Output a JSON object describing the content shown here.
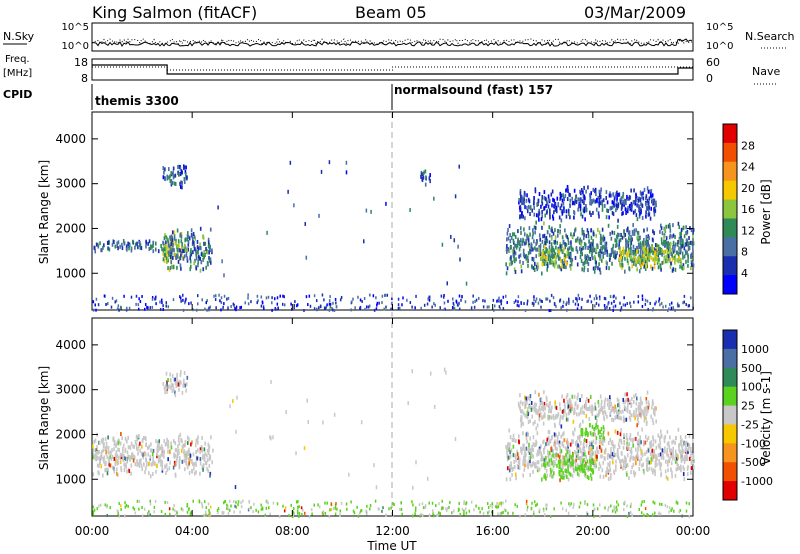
{
  "header": {
    "station": "King Salmon (fitACF)",
    "beam": "Beam 05",
    "date": "03/Mar/2009"
  },
  "labels": {
    "nsky": "N.Sky",
    "nsearch": "N.Search",
    "freq_line1": "Freq.",
    "freq_line2": "[MHz]",
    "nave": "Nave",
    "cpid": "CPID",
    "cpid_mode1": "themis 3300",
    "cpid_mode2": "normalsound (fast) 157"
  },
  "noise_ticks": {
    "top": "10^5",
    "bottom": "10^0"
  },
  "freq_ticks": {
    "left": [
      "18",
      "8"
    ],
    "right": [
      "60",
      "0"
    ]
  },
  "colorbar_power": {
    "label": "Power [dB]",
    "ticks": [
      "28",
      "24",
      "20",
      "16",
      "12",
      "8",
      "4"
    ],
    "colors": [
      "#e00000",
      "#f05000",
      "#f7941d",
      "#f5c800",
      "#8cc63f",
      "#2e8b57",
      "#4a6fa5",
      "#1a2fb0",
      "#0000ff"
    ]
  },
  "colorbar_velocity": {
    "label": "Velocity [m s-1]",
    "ticks": [
      "1000",
      "500",
      "100",
      "25",
      "-25",
      "-100",
      "-500",
      "-1000"
    ],
    "colors": [
      "#1a2fb0",
      "#4a6fa5",
      "#2e8b57",
      "#5ad21e",
      "#c8c8c8",
      "#f5c800",
      "#f7941d",
      "#f05000",
      "#e00000"
    ]
  },
  "chart_data": {
    "type": "heatmap",
    "xlabel": "Time UT",
    "ylabel": "Slant Range [km]",
    "x_ticks": [
      "00:00",
      "04:00",
      "08:00",
      "12:00",
      "16:00",
      "20:00",
      "00:00"
    ],
    "x_range_hours": [
      0,
      24
    ],
    "y_ticks": [
      "1000",
      "2000",
      "3000",
      "4000"
    ],
    "y_range_km": [
      180,
      4600
    ],
    "cpid_change_hour": 12,
    "freq_step_hour": 3,
    "power_clusters": [
      {
        "x": [
          0.0,
          3.0
        ],
        "y": [
          1500,
          1800
        ],
        "level": 8
      },
      {
        "x": [
          2.8,
          3.6
        ],
        "y": [
          1050,
          2000
        ],
        "level": 18
      },
      {
        "x": [
          3.0,
          4.8
        ],
        "y": [
          1050,
          2100
        ],
        "level": 10
      },
      {
        "x": [
          2.8,
          3.8
        ],
        "y": [
          2900,
          3500
        ],
        "level": 8
      },
      {
        "x": [
          13.1,
          13.5
        ],
        "y": [
          3000,
          3400
        ],
        "level": 8
      },
      {
        "x": [
          16.5,
          24.0
        ],
        "y": [
          1000,
          2200
        ],
        "level": 10
      },
      {
        "x": [
          17.8,
          19.0
        ],
        "y": [
          1100,
          1700
        ],
        "level": 16
      },
      {
        "x": [
          21.0,
          23.5
        ],
        "y": [
          1100,
          1700
        ],
        "level": 16
      },
      {
        "x": [
          17.0,
          22.5
        ],
        "y": [
          2200,
          3000
        ],
        "level": 6
      }
    ],
    "velocity_clusters": [
      {
        "x": [
          0.0,
          4.8
        ],
        "y": [
          1050,
          2100
        ],
        "level": 0
      },
      {
        "x": [
          2.8,
          3.8
        ],
        "y": [
          2900,
          3500
        ],
        "level": 0
      },
      {
        "x": [
          16.5,
          24.0
        ],
        "y": [
          1000,
          2200
        ],
        "level": 0
      },
      {
        "x": [
          18.0,
          20.0
        ],
        "y": [
          1000,
          1700
        ],
        "level": 80
      },
      {
        "x": [
          19.5,
          20.5
        ],
        "y": [
          1900,
          2300
        ],
        "level": 80
      },
      {
        "x": [
          17.0,
          22.5
        ],
        "y": [
          2200,
          3000
        ],
        "level": 0
      }
    ]
  }
}
